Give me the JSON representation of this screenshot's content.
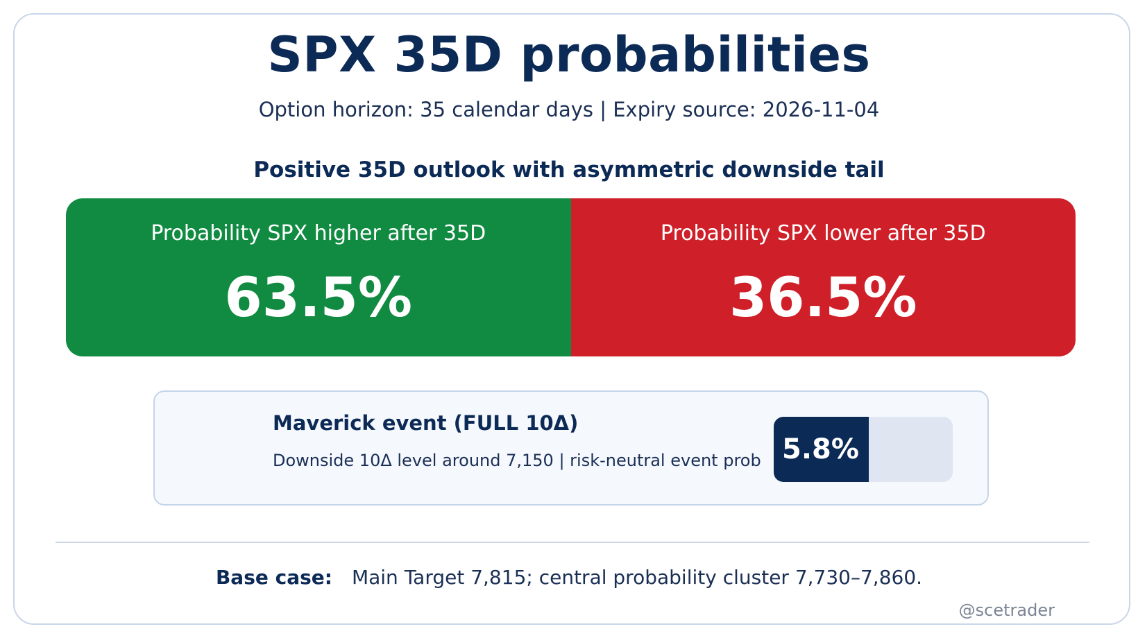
{
  "title": "SPX 35D probabilities",
  "subtitle": "Option horizon: 35 calendar days | Expiry source: 2026-11-04",
  "headline": "Positive 35D outlook with asymmetric downside tail",
  "chart_data": {
    "type": "bar",
    "orientation": "horizontal-stacked",
    "categories": [
      "Probability SPX higher after 35D",
      "Probability SPX lower after 35D"
    ],
    "values": [
      63.5,
      36.5
    ],
    "value_labels": [
      "63.5%",
      "36.5%"
    ],
    "unit": "%",
    "colors": [
      "#118b41",
      "#cf1f29"
    ]
  },
  "event": {
    "title": "Maverick event (FULL 10Δ)",
    "description": "Downside 10Δ level around 7,150 | risk-neutral event prob",
    "probability": 5.8,
    "probability_label": "5.8%",
    "fill_color": "#0c2a56",
    "track_color": "#dfe6f1"
  },
  "base_case": {
    "label": "Base case:",
    "text": "Main Target 7,815; central probability cluster 7,730–7,860."
  },
  "credit": "@scetrader",
  "colors": {
    "navy": "#0c2a56",
    "border": "#c9d6ea"
  }
}
